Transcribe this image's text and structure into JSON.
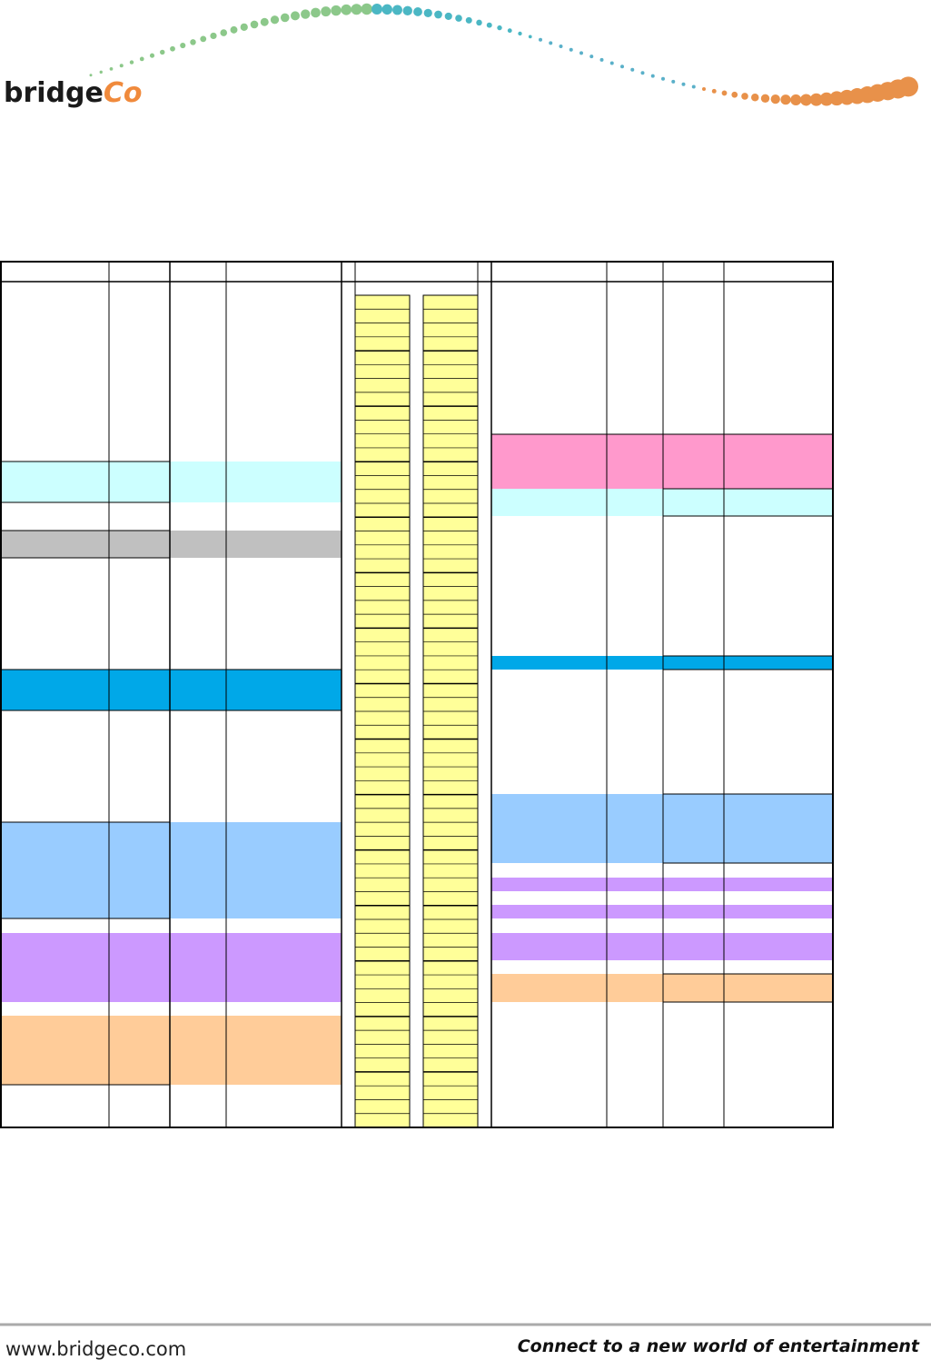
{
  "header": {
    "logo": {
      "part1": "bridge",
      "part2": "Co"
    }
  },
  "footer": {
    "url": "www.bridgeco.com",
    "tagline": "Connect to a new world of entertainment"
  }
}
